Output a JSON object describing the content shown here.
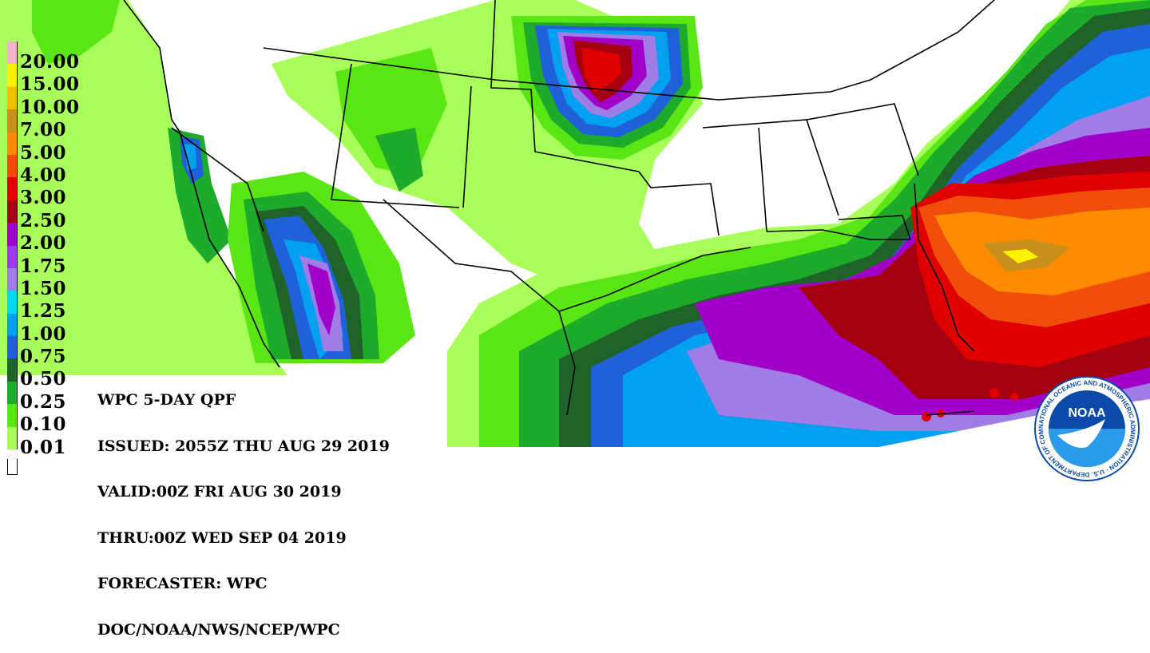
{
  "product": {
    "title": "WPC 5-DAY QPF",
    "issued": "ISSUED: 2055Z THU AUG 29 2019",
    "valid": "VALID:00Z FRI AUG 30 2019",
    "thru": "THRU:00Z WED SEP 04 2019",
    "forecaster": "FORECASTER: WPC",
    "source": "DOC/NOAA/NWS/NCEP/WPC"
  },
  "legend": {
    "entries": [
      {
        "label": "20.00",
        "color": "#f4b6c2"
      },
      {
        "label": "15.00",
        "color": "#fff200"
      },
      {
        "label": "10.00",
        "color": "#f0c000"
      },
      {
        "label": "7.00",
        "color": "#c8901a"
      },
      {
        "label": "5.00",
        "color": "#ff8c00"
      },
      {
        "label": "4.00",
        "color": "#f04e0a"
      },
      {
        "label": "3.00",
        "color": "#e00000"
      },
      {
        "label": "2.50",
        "color": "#a50010"
      },
      {
        "label": "2.00",
        "color": "#a000c8"
      },
      {
        "label": "1.75",
        "color": "#9a3cf0"
      },
      {
        "label": "1.50",
        "color": "#a07ce6"
      },
      {
        "label": "1.25",
        "color": "#00d8f0"
      },
      {
        "label": "1.00",
        "color": "#00a0f0"
      },
      {
        "label": "0.75",
        "color": "#2060d8"
      },
      {
        "label": "0.50",
        "color": "#1e6428"
      },
      {
        "label": "0.25",
        "color": "#1eaa2a"
      },
      {
        "label": "0.10",
        "color": "#5ae614"
      },
      {
        "label": "0.01",
        "color": "#a8ff5a"
      }
    ],
    "zero_color": "#ffffff"
  },
  "logo": {
    "text": "NOAA",
    "ring_text": "NATIONAL OCEANIC AND ATMOSPHERIC ADMINISTRATION · U.S. DEPARTMENT OF COMMERCE",
    "colors": {
      "outer": "#0b4aa8",
      "inner": "#2a9be8",
      "bird": "#ffffff"
    }
  },
  "colors": {
    "background": "#ffffff",
    "borders": "#000000"
  }
}
